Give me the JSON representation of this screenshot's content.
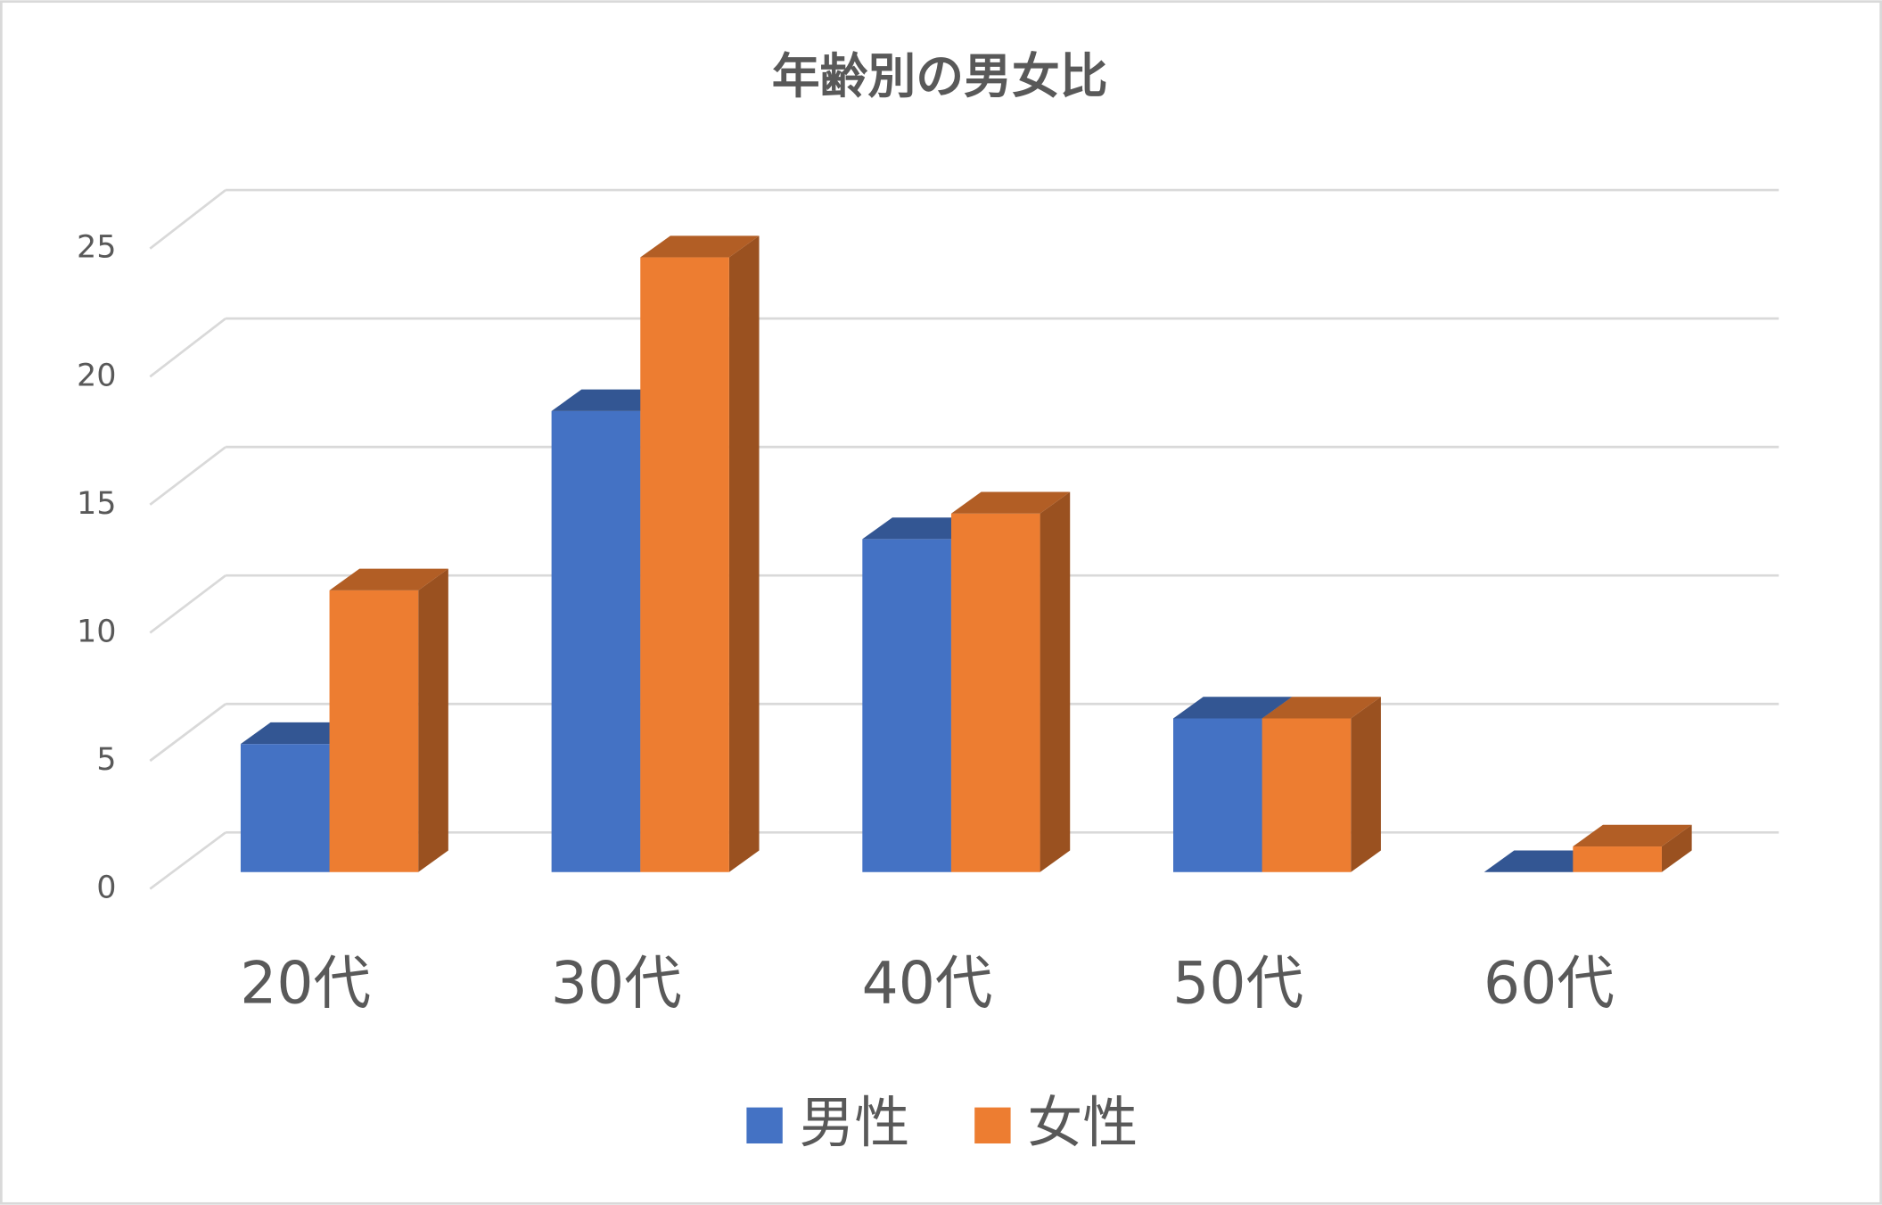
{
  "chart_data": {
    "type": "bar3d",
    "title": "年齢別の男女比",
    "categories": [
      "20代",
      "30代",
      "40代",
      "50代",
      "60代"
    ],
    "series": [
      {
        "name": "男性",
        "color": "#4472c4",
        "values": [
          5,
          18,
          13,
          6,
          0
        ]
      },
      {
        "name": "女性",
        "color": "#ed7d31",
        "values": [
          11,
          24,
          14,
          6,
          1
        ]
      }
    ],
    "ylim": [
      0,
      25
    ],
    "yticks": [
      0,
      5,
      10,
      15,
      20,
      25
    ],
    "grid": true,
    "legend": "bottom"
  }
}
